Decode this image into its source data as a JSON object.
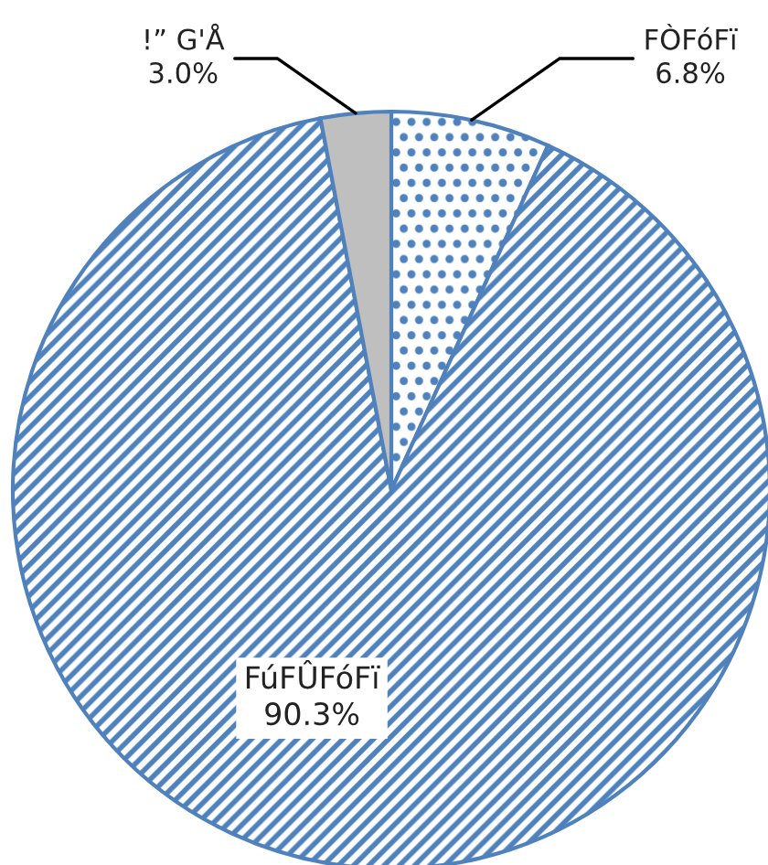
{
  "chart_data": {
    "type": "pie",
    "categories": [
      "FÒFóFï",
      "FúFÛFóFï",
      "!” G'Å"
    ],
    "values": [
      6.8,
      90.3,
      3.0
    ],
    "colors": [
      "#4f81bd",
      "#4f81bd",
      "#bfbfbf"
    ],
    "value_labels": [
      "6.8%",
      "90.3%",
      "3.0%"
    ],
    "legend": false
  }
}
